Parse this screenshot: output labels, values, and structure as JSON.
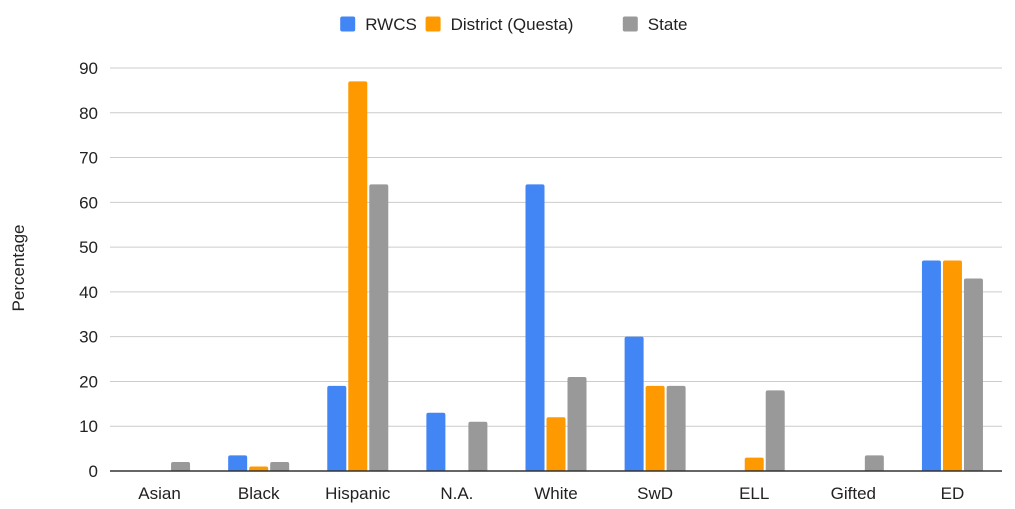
{
  "chart_data": {
    "type": "bar",
    "ylabel": "Percentage",
    "ylim": [
      0,
      90
    ],
    "yticks": [
      0,
      10,
      20,
      30,
      40,
      50,
      60,
      70,
      80,
      90
    ],
    "grid": true,
    "legend_position": "top-center",
    "categories": [
      "Asian",
      "Black",
      "Hispanic",
      "N.A.",
      "White",
      "SwD",
      "ELL",
      "Gifted",
      "ED"
    ],
    "series": [
      {
        "name": "RWCS",
        "color": "#4285f4",
        "values": [
          0,
          3.5,
          19,
          13,
          64,
          30,
          0,
          0,
          47
        ]
      },
      {
        "name": "District (Questa)",
        "color": "#ff9900",
        "values": [
          0,
          1,
          87,
          0,
          12,
          19,
          3,
          0,
          47
        ]
      },
      {
        "name": "State",
        "color": "#999999",
        "values": [
          2,
          2,
          64,
          11,
          21,
          19,
          18,
          3.5,
          43
        ]
      }
    ]
  }
}
